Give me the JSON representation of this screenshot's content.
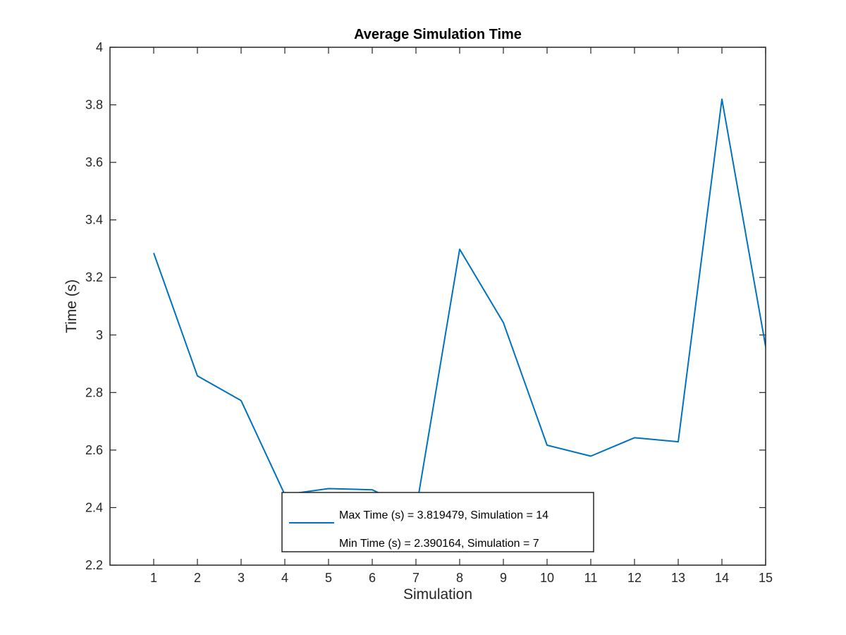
{
  "chart_data": {
    "type": "line",
    "title": "Average Simulation Time",
    "xlabel": "Simulation",
    "ylabel": "Time (s)",
    "xlim": [
      0,
      15
    ],
    "ylim": [
      2.2,
      4
    ],
    "xticks": [
      1,
      2,
      3,
      4,
      5,
      6,
      7,
      8,
      9,
      10,
      11,
      12,
      13,
      14,
      15
    ],
    "xtick_labels": [
      "1",
      "2",
      "3",
      "4",
      "5",
      "6",
      "7",
      "8",
      "9",
      "10",
      "11",
      "12",
      "13",
      "14",
      "15"
    ],
    "yticks": [
      2.2,
      2.4,
      2.6,
      2.8,
      3.0,
      3.2,
      3.4,
      3.6,
      3.8,
      4.0
    ],
    "ytick_labels": [
      "2.2",
      "2.4",
      "2.6",
      "2.8",
      "3",
      "3.2",
      "3.4",
      "3.6",
      "3.8",
      "4"
    ],
    "grid": false,
    "line_color": "#0072bd",
    "series": [
      {
        "x": [
          1,
          2,
          3,
          4,
          5,
          6,
          7,
          8,
          9,
          10,
          11,
          12,
          13,
          14,
          15
        ],
        "values": [
          3.285,
          2.858,
          2.772,
          2.445,
          2.466,
          2.462,
          2.390164,
          3.298,
          3.043,
          2.617,
          2.579,
          2.643,
          2.629,
          3.819479,
          2.96
        ]
      }
    ],
    "legend": {
      "placement": "bottom-center",
      "entries": [
        "Max Time (s) = 3.819479, Simulation = 14",
        "Min Time (s) = 2.390164, Simulation = 7"
      ]
    }
  }
}
